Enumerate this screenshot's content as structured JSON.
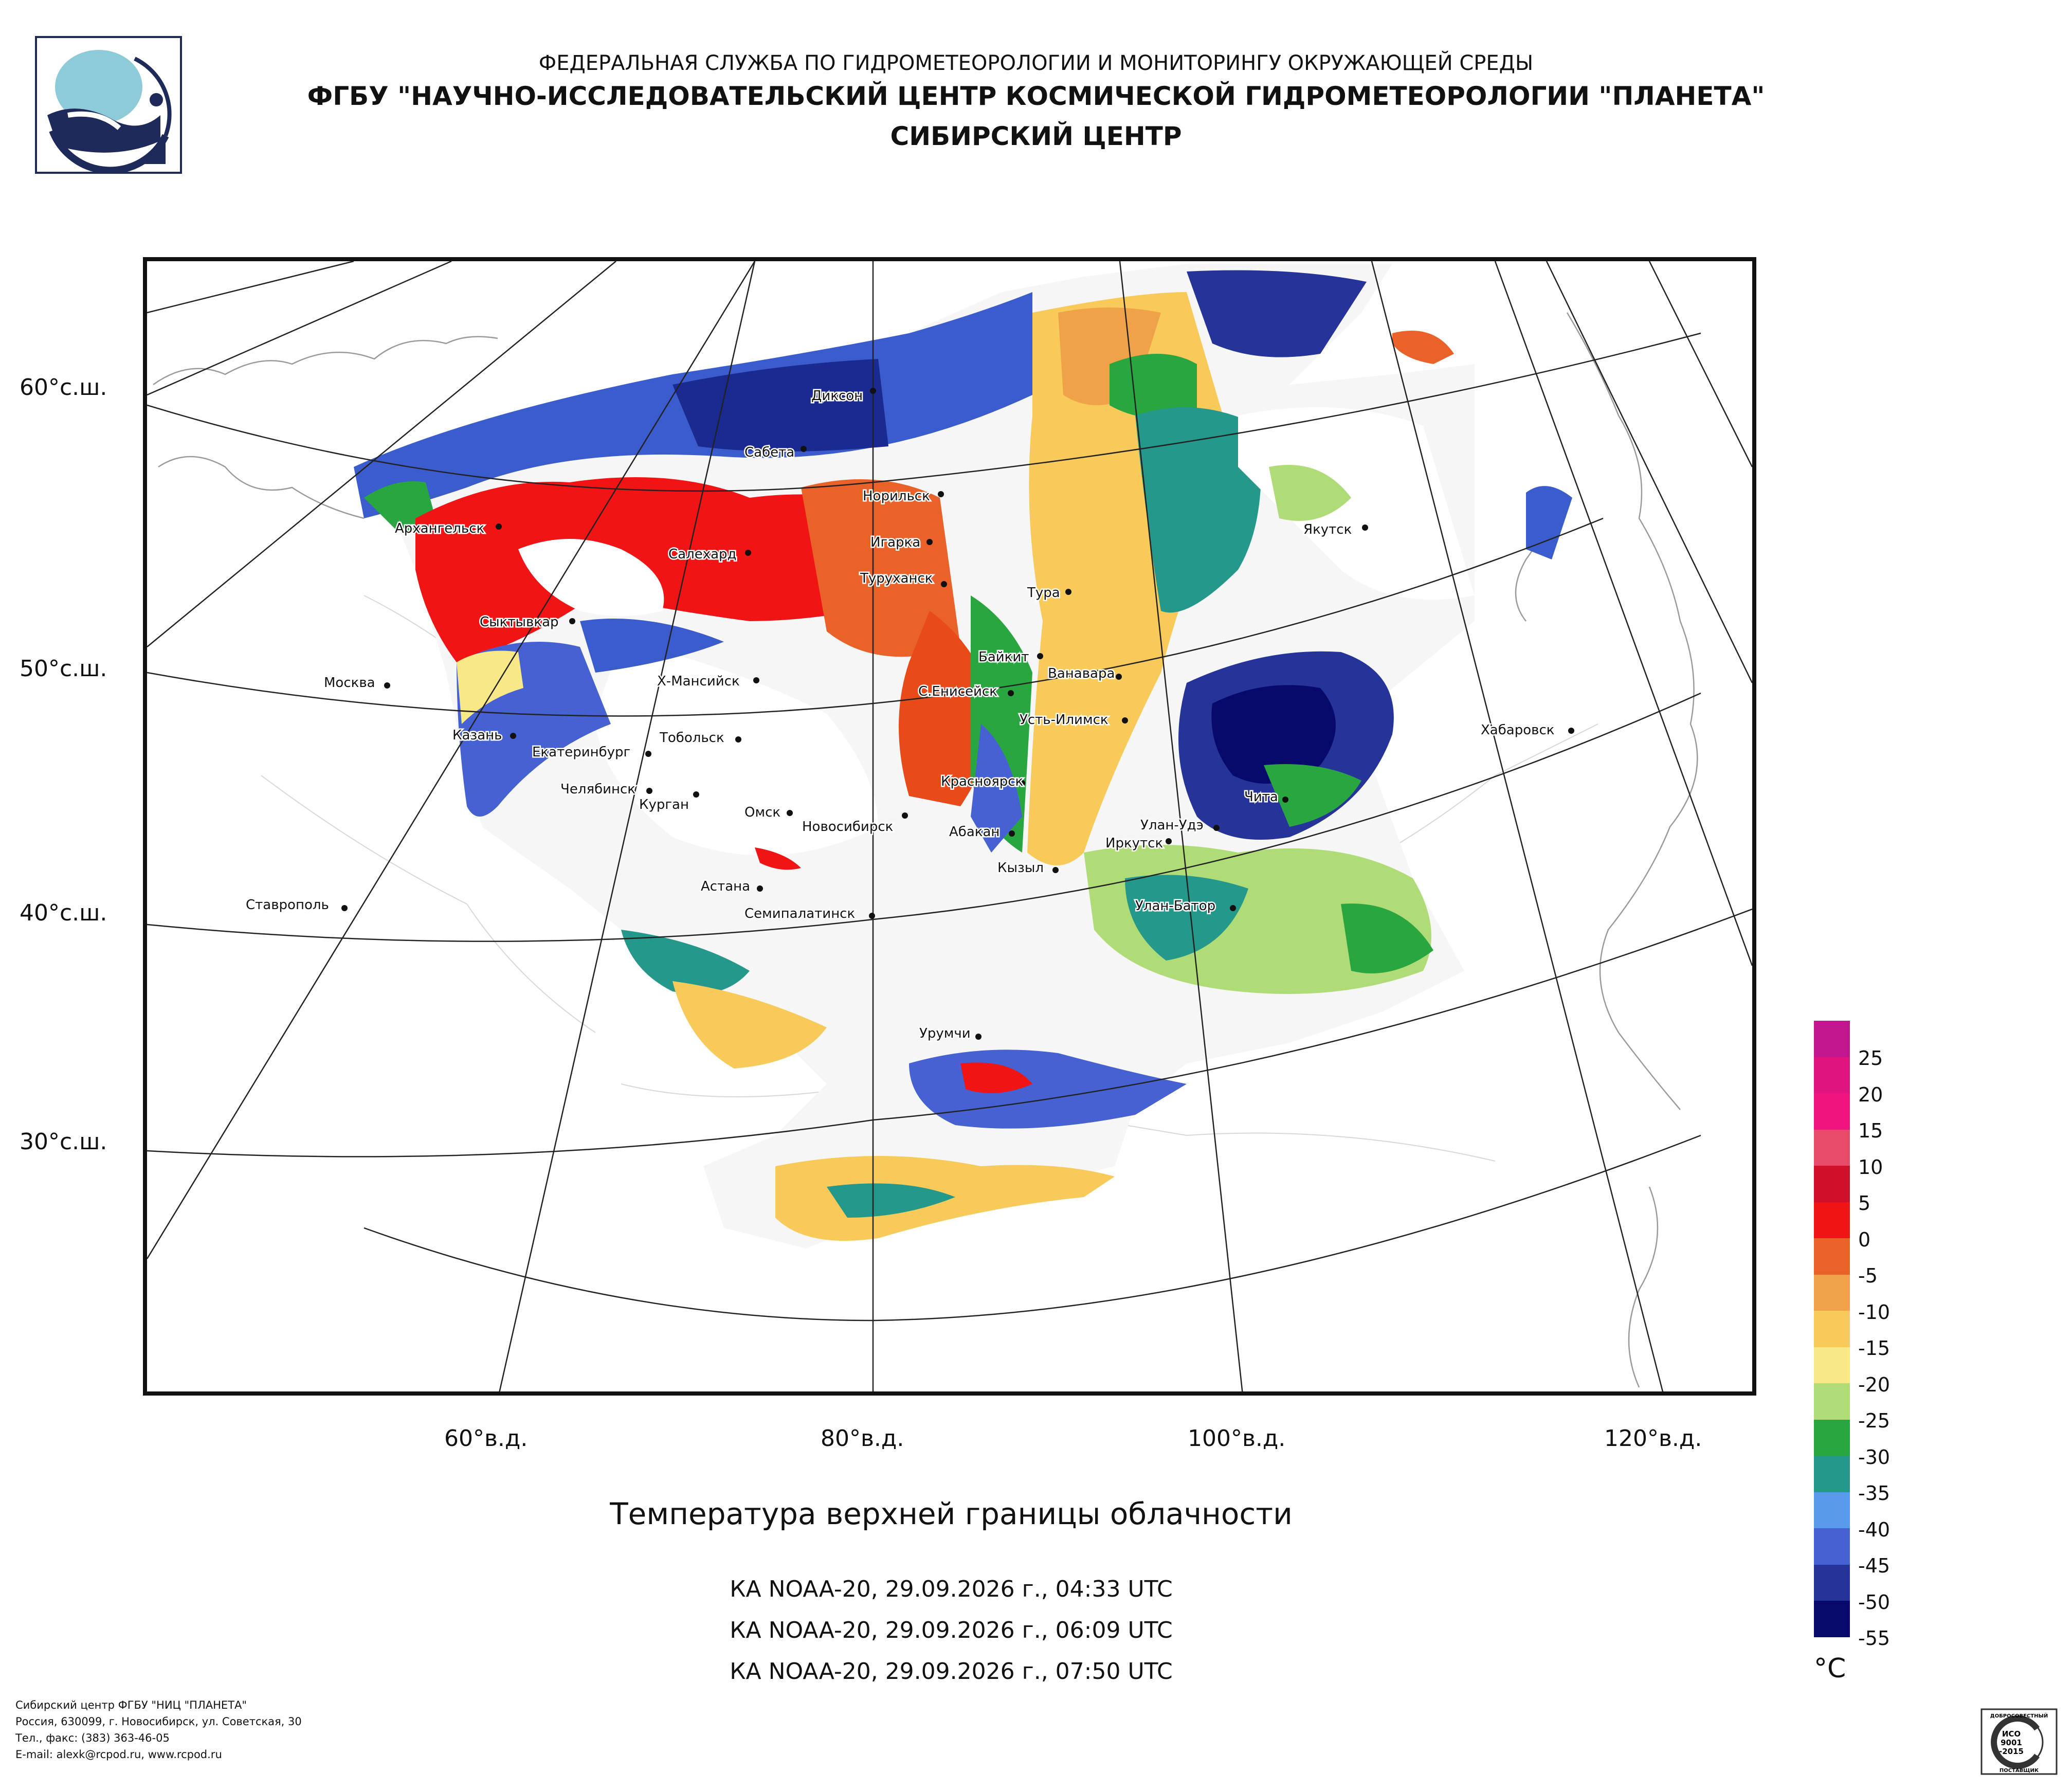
{
  "header": {
    "line1": "ФЕДЕРАЛЬНАЯ СЛУЖБА ПО ГИДРОМЕТЕОРОЛОГИИ И МОНИТОРИНГУ ОКРУЖАЮЩЕЙ СРЕДЫ",
    "line2": "ФГБУ \"НАУЧНО-ИССЛЕДОВАТЕЛЬСКИЙ ЦЕНТР КОСМИЧЕСКОЙ ГИДРОМЕТЕОРОЛОГИИ \"ПЛАНЕТА\"",
    "line3": "СИБИРСКИЙ ЦЕНТР"
  },
  "map": {
    "lat_labels": [
      "60°с.ш.",
      "50°с.ш.",
      "40°с.ш.",
      "30°с.ш."
    ],
    "lon_labels": [
      "60°в.д.",
      "80°в.д.",
      "100°в.д.",
      "120°в.д."
    ],
    "cities": [
      {
        "name": "Диксон"
      },
      {
        "name": "Сабета"
      },
      {
        "name": "Норильск"
      },
      {
        "name": "Игарка"
      },
      {
        "name": "Туруханск"
      },
      {
        "name": "Архангельск"
      },
      {
        "name": "Салехард"
      },
      {
        "name": "Сыктывкар"
      },
      {
        "name": "Якутск"
      },
      {
        "name": "Тура"
      },
      {
        "name": "Байкит"
      },
      {
        "name": "Ванавара"
      },
      {
        "name": "С.Енисейск"
      },
      {
        "name": "Х-Мансийск"
      },
      {
        "name": "Москва"
      },
      {
        "name": "Усть-Илимск"
      },
      {
        "name": "Казань"
      },
      {
        "name": "Екатеринбург"
      },
      {
        "name": "Тобольск"
      },
      {
        "name": "Хабаровск"
      },
      {
        "name": "Челябинск"
      },
      {
        "name": "Курган"
      },
      {
        "name": "Красноярск"
      },
      {
        "name": "Омск"
      },
      {
        "name": "Новосибирск"
      },
      {
        "name": "Чита"
      },
      {
        "name": "Абакан"
      },
      {
        "name": "Улан-Удэ"
      },
      {
        "name": "Иркутск"
      },
      {
        "name": "Кызыл"
      },
      {
        "name": "Астана"
      },
      {
        "name": "Ставрополь"
      },
      {
        "name": "Семипалатинск"
      },
      {
        "name": "Улан-Батор"
      },
      {
        "name": "Урумчи"
      }
    ]
  },
  "title": "Температура верхней границы облачности",
  "passes": [
    "КА NOAA-20, 29.09.2026 г., 04:33 UTC",
    "КА NOAA-20, 29.09.2026 г., 06:09 UTC",
    "КА NOAA-20, 29.09.2026 г., 07:50 UTC"
  ],
  "colorbar": {
    "unit": "°C",
    "labels": [
      "25",
      "20",
      "15",
      "10",
      "5",
      "0",
      "-5",
      "-10",
      "-15",
      "-20",
      "-25",
      "-30",
      "-35",
      "-40",
      "-45",
      "-50",
      "-55"
    ],
    "colors": [
      "#c2168e",
      "#e0147e",
      "#f0147e",
      "#e84a6a",
      "#d0102a",
      "#f01414",
      "#e8622a",
      "#f0a248",
      "#f8ca5a",
      "#f8e888",
      "#b0dc78",
      "#2aa640",
      "#24988a",
      "#5a9aea",
      "#4662d2",
      "#26349a",
      "#070a6a"
    ]
  },
  "footer": {
    "line1": "Сибирский центр ФГБУ \"НИЦ \"ПЛАНЕТА\"",
    "line2": "Россия, 630099, г. Новосибирск, ул. Советская, 30",
    "line3": "Тел., факс: (383) 363-46-05",
    "line4": "E-mail: alexk@rcpod.ru, www.rcpod.ru"
  },
  "iso": {
    "top": "ДОБРОСОВЕСТНЫЙ",
    "l1": "ИСО",
    "l2": "9001",
    "l3": "-2015",
    "bottom": "ПОСТАВЩИК"
  }
}
